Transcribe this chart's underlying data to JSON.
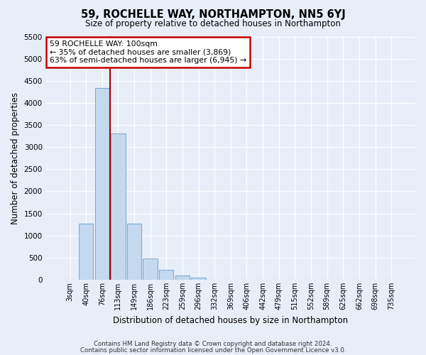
{
  "title": "59, ROCHELLE WAY, NORTHAMPTON, NN5 6YJ",
  "subtitle": "Size of property relative to detached houses in Northampton",
  "xlabel": "Distribution of detached houses by size in Northampton",
  "ylabel": "Number of detached properties",
  "bar_labels": [
    "3sqm",
    "40sqm",
    "76sqm",
    "113sqm",
    "149sqm",
    "186sqm",
    "223sqm",
    "259sqm",
    "296sqm",
    "332sqm",
    "369sqm",
    "406sqm",
    "442sqm",
    "479sqm",
    "515sqm",
    "552sqm",
    "589sqm",
    "625sqm",
    "662sqm",
    "698sqm",
    "735sqm"
  ],
  "bar_values": [
    0,
    1270,
    4330,
    3300,
    1270,
    480,
    230,
    90,
    50,
    0,
    0,
    0,
    0,
    0,
    0,
    0,
    0,
    0,
    0,
    0,
    0
  ],
  "bar_color": "#c5d9ee",
  "bar_edge_color": "#7bafd4",
  "red_line_x": 2.5,
  "marker_color": "#aa0000",
  "ylim": [
    0,
    5500
  ],
  "yticks": [
    0,
    500,
    1000,
    1500,
    2000,
    2500,
    3000,
    3500,
    4000,
    4500,
    5000,
    5500
  ],
  "annotation_title": "59 ROCHELLE WAY: 100sqm",
  "annotation_line1": "← 35% of detached houses are smaller (3,869)",
  "annotation_line2": "63% of semi-detached houses are larger (6,945) →",
  "annotation_box_facecolor": "white",
  "annotation_box_edgecolor": "#cc0000",
  "background_color": "#e8eef8",
  "grid_color": "white",
  "footer1": "Contains HM Land Registry data © Crown copyright and database right 2024.",
  "footer2": "Contains public sector information licensed under the Open Government Licence v3.0."
}
